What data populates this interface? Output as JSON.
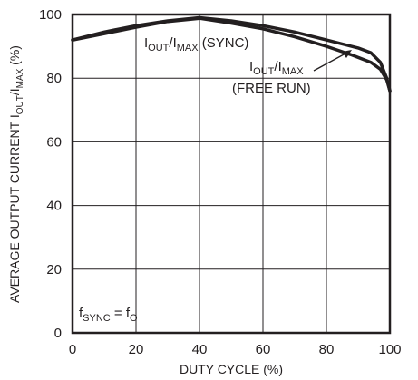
{
  "chart_data": {
    "type": "line",
    "xlabel": "DUTY CYCLE (%)",
    "ylabel_parts": [
      "AVERAGE OUTPUT CURRENT I",
      "OUT",
      "/I",
      "MAX",
      " (%)"
    ],
    "xlim": [
      0,
      100
    ],
    "ylim": [
      0,
      100
    ],
    "x_ticks": [
      "0",
      "20",
      "40",
      "60",
      "80",
      "100"
    ],
    "y_ticks": [
      "0",
      "20",
      "40",
      "60",
      "80",
      "100"
    ],
    "grid": true,
    "series": [
      {
        "name_parts": [
          "I",
          "OUT",
          "/I",
          "MAX",
          " (SYNC)"
        ],
        "points": [
          [
            0,
            92
          ],
          [
            10,
            94.5
          ],
          [
            20,
            96.5
          ],
          [
            30,
            98
          ],
          [
            40,
            99
          ],
          [
            50,
            98
          ],
          [
            60,
            96.5
          ],
          [
            70,
            94.5
          ],
          [
            80,
            92
          ],
          [
            90,
            89.5
          ],
          [
            94,
            88
          ],
          [
            97,
            85
          ],
          [
            99,
            80
          ],
          [
            100,
            76
          ]
        ]
      },
      {
        "name_parts": [
          "I",
          "OUT",
          "/I",
          "MAX"
        ],
        "name_line2": "(FREE RUN)",
        "points": [
          [
            0,
            92
          ],
          [
            10,
            94
          ],
          [
            20,
            96
          ],
          [
            30,
            97.8
          ],
          [
            40,
            98.8
          ],
          [
            50,
            97.3
          ],
          [
            60,
            95.5
          ],
          [
            70,
            93
          ],
          [
            80,
            90
          ],
          [
            88,
            87.3
          ],
          [
            94,
            85
          ],
          [
            97,
            82.8
          ],
          [
            99,
            79.5
          ],
          [
            100,
            76
          ]
        ]
      }
    ],
    "annotation_parts": [
      "f",
      "SYNC",
      " = f",
      "O"
    ],
    "colors": {
      "line": "#231f20",
      "grid": "#231f20"
    }
  }
}
